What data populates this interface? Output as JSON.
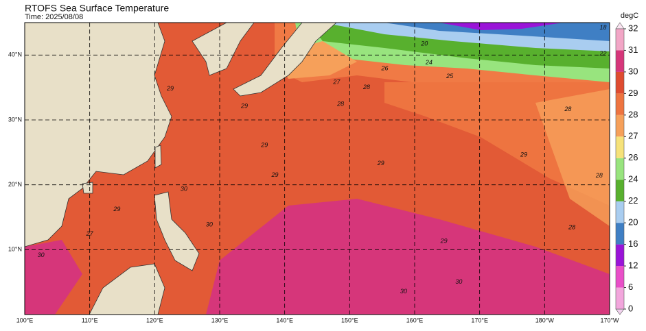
{
  "title": "RTOFS Sea Surface Temperature",
  "time": "Time: 2025/08/08",
  "map": {
    "lonlim": [
      100,
      190
    ],
    "latlim": [
      0,
      45
    ],
    "lonticks": [
      {
        "value": 100,
        "label": "100°E"
      },
      {
        "value": 110,
        "label": "110°E"
      },
      {
        "value": 120,
        "label": "120°E"
      },
      {
        "value": 130,
        "label": "130°E"
      },
      {
        "value": 140,
        "label": "140°E"
      },
      {
        "value": 150,
        "label": "150°E"
      },
      {
        "value": 160,
        "label": "160°E"
      },
      {
        "value": 170,
        "label": "170°E"
      },
      {
        "value": 180,
        "label": "180°W"
      },
      {
        "value": 190,
        "label": "170°W"
      }
    ],
    "latticks": [
      {
        "value": 10,
        "label": "10°N"
      },
      {
        "value": 20,
        "label": "20°N"
      },
      {
        "value": 30,
        "label": "30°N"
      },
      {
        "value": 40,
        "label": "40°N"
      }
    ],
    "grid": true,
    "contour_labels": [
      {
        "value": 29,
        "lon": 122.4,
        "lat": 34.8
      },
      {
        "value": 29,
        "lon": 136.9,
        "lat": 26.1
      },
      {
        "value": 29,
        "lon": 154.8,
        "lat": 23.3
      },
      {
        "value": 29,
        "lon": 138.5,
        "lat": 21.5
      },
      {
        "value": 30,
        "lon": 124.5,
        "lat": 19.3
      },
      {
        "value": 30,
        "lon": 128.4,
        "lat": 13.8
      },
      {
        "value": 30,
        "lon": 166.8,
        "lat": 5.0
      },
      {
        "value": 30,
        "lon": 158.3,
        "lat": 3.5
      },
      {
        "value": 28,
        "lon": 152.6,
        "lat": 35.0
      },
      {
        "value": 28,
        "lon": 183.6,
        "lat": 31.6
      },
      {
        "value": 28,
        "lon": 188.4,
        "lat": 21.4
      },
      {
        "value": 27,
        "lon": 148.0,
        "lat": 35.8
      },
      {
        "value": 26,
        "lon": 155.4,
        "lat": 37.9
      },
      {
        "value": 25,
        "lon": 165.4,
        "lat": 36.7
      },
      {
        "value": 24,
        "lon": 162.2,
        "lat": 38.8
      },
      {
        "value": 22,
        "lon": 189.0,
        "lat": 40.2
      },
      {
        "value": 20,
        "lon": 161.5,
        "lat": 41.7
      },
      {
        "value": 18,
        "lon": 189.0,
        "lat": 44.2
      },
      {
        "value": 29,
        "lon": 164.5,
        "lat": 11.3
      },
      {
        "value": 29,
        "lon": 176.8,
        "lat": 24.6
      },
      {
        "value": 30,
        "lon": 102.5,
        "lat": 9.1
      },
      {
        "value": 29,
        "lon": 114.2,
        "lat": 16.2
      },
      {
        "value": 28,
        "lon": 184.2,
        "lat": 13.4
      },
      {
        "value": 27,
        "lon": 110.0,
        "lat": 12.4
      },
      {
        "value": 29,
        "lon": 133.8,
        "lat": 32.1
      },
      {
        "value": 28,
        "lon": 148.6,
        "lat": 32.4
      }
    ]
  },
  "colorbar": {
    "label": "degC",
    "ticks": [
      0,
      6,
      12,
      16,
      20,
      22,
      24,
      26,
      27,
      28,
      29,
      30,
      31,
      32
    ],
    "colors": [
      "#f2a6dc",
      "#e94fc8",
      "#9a14d8",
      "#3f7fc4",
      "#a9cdf0",
      "#58b02e",
      "#98e47e",
      "#f6e27a",
      "#f6a05a",
      "#ee7440",
      "#df4c30",
      "#d6367a",
      "#f2a6c6"
    ],
    "under_color": "#f1d2ee",
    "over_color": "#fbe4f1"
  }
}
